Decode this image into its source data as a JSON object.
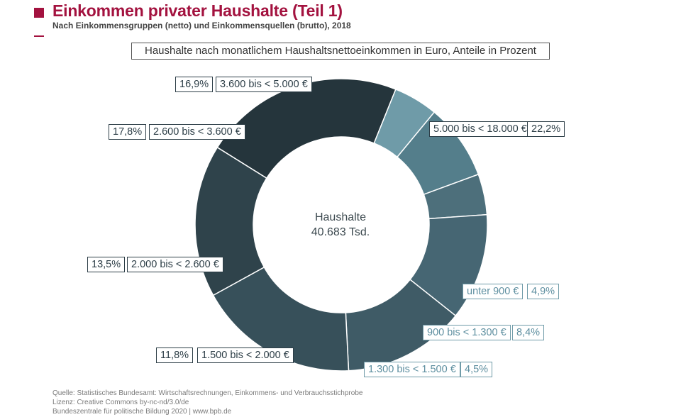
{
  "header": {
    "title": "Einkommen privater Haushalte  (Teil 1)",
    "subtitle": "Nach Einkommensgruppen (netto) und Einkommensquellen (brutto), 2018"
  },
  "chart_caption": "Haushalte nach monatlichem Haushaltsnettoeinkommen in Euro, Anteile in Prozent",
  "center": {
    "line1": "Haushalte",
    "line2": "40.683 Tsd."
  },
  "chart_data": {
    "type": "pie",
    "variant": "donut",
    "center_text": [
      "Haushalte",
      "40.683 Tsd."
    ],
    "categories": [
      "5.000 bis < 18.000 €",
      "unter 900 €",
      "900 bis < 1.300 €",
      "1.300 bis < 1.500 €",
      "1.500 bis < 2.000 €",
      "2.000 bis < 2.600 €",
      "2.600 bis < 3.600 €",
      "3.600 bis < 5.000 €"
    ],
    "values": [
      22.2,
      4.9,
      8.4,
      4.5,
      11.8,
      13.5,
      17.8,
      16.9
    ],
    "value_labels": [
      "22,2%",
      "4,9%",
      "8,4%",
      "4,5%",
      "11,8%",
      "13,5%",
      "17,8%",
      "16,9%"
    ],
    "colors": [
      "#25353c",
      "#6f9ba8",
      "#547e8b",
      "#4d6f7b",
      "#466673",
      "#3f5b66",
      "#37505a",
      "#2f434b"
    ]
  },
  "footer": {
    "line1": "Quelle: Statistisches Bundesamt: Wirtschaftsrechnungen, Einkommens- und Verbrauchsstichprobe",
    "line2": "Lizenz: Creative Commons by-nc-nd/3.0/de",
    "line3": "Bundeszentrale für politische Bildung 2020  |  www.bpb.de"
  }
}
